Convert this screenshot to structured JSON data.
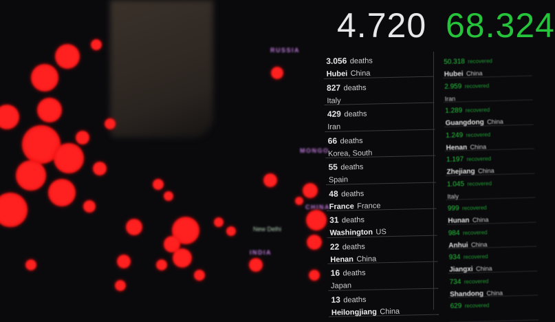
{
  "header": {
    "total_deaths": "4.720",
    "total_recovered": "68.324"
  },
  "map": {
    "labels": {
      "russia": "RUSSIA",
      "mongolia": "MONGO",
      "china": "CHINA",
      "india": "INDIA",
      "new_delhi": "New Delhi"
    }
  },
  "deaths": {
    "unit": "deaths",
    "items": [
      {
        "count": "3.056",
        "place": "Hubei",
        "country": "China"
      },
      {
        "count": "827",
        "place": "",
        "country": "Italy"
      },
      {
        "count": "429",
        "place": "",
        "country": "Iran"
      },
      {
        "count": "66",
        "place": "",
        "country": "Korea, South"
      },
      {
        "count": "55",
        "place": "",
        "country": "Spain"
      },
      {
        "count": "48",
        "place": "France",
        "country": "France"
      },
      {
        "count": "31",
        "place": "Washington",
        "country": "US"
      },
      {
        "count": "22",
        "place": "Henan",
        "country": "China"
      },
      {
        "count": "16",
        "place": "",
        "country": "Japan"
      },
      {
        "count": "13",
        "place": "Heilongjiang",
        "country": "China"
      }
    ]
  },
  "recovered": {
    "unit": "recovered",
    "items": [
      {
        "count": "50.318",
        "place": "Hubei",
        "country": "China"
      },
      {
        "count": "2.959",
        "place": "",
        "country": "Iran"
      },
      {
        "count": "1.289",
        "place": "Guangdong",
        "country": "China"
      },
      {
        "count": "1.249",
        "place": "Henan",
        "country": "China"
      },
      {
        "count": "1.197",
        "place": "Zhejiang",
        "country": "China"
      },
      {
        "count": "1.045",
        "place": "",
        "country": "Italy"
      },
      {
        "count": "999",
        "place": "Hunan",
        "country": "China"
      },
      {
        "count": "984",
        "place": "Anhui",
        "country": "China"
      },
      {
        "count": "934",
        "place": "Jiangxi",
        "country": "China"
      },
      {
        "count": "734",
        "place": "Shandong",
        "country": "China"
      },
      {
        "count": "629",
        "place": "",
        "country": ""
      }
    ]
  },
  "colors": {
    "deaths": "#e6e6e6",
    "recovered": "#25c43a",
    "markers": "#ff2020",
    "country_labels": "#c67de0"
  }
}
